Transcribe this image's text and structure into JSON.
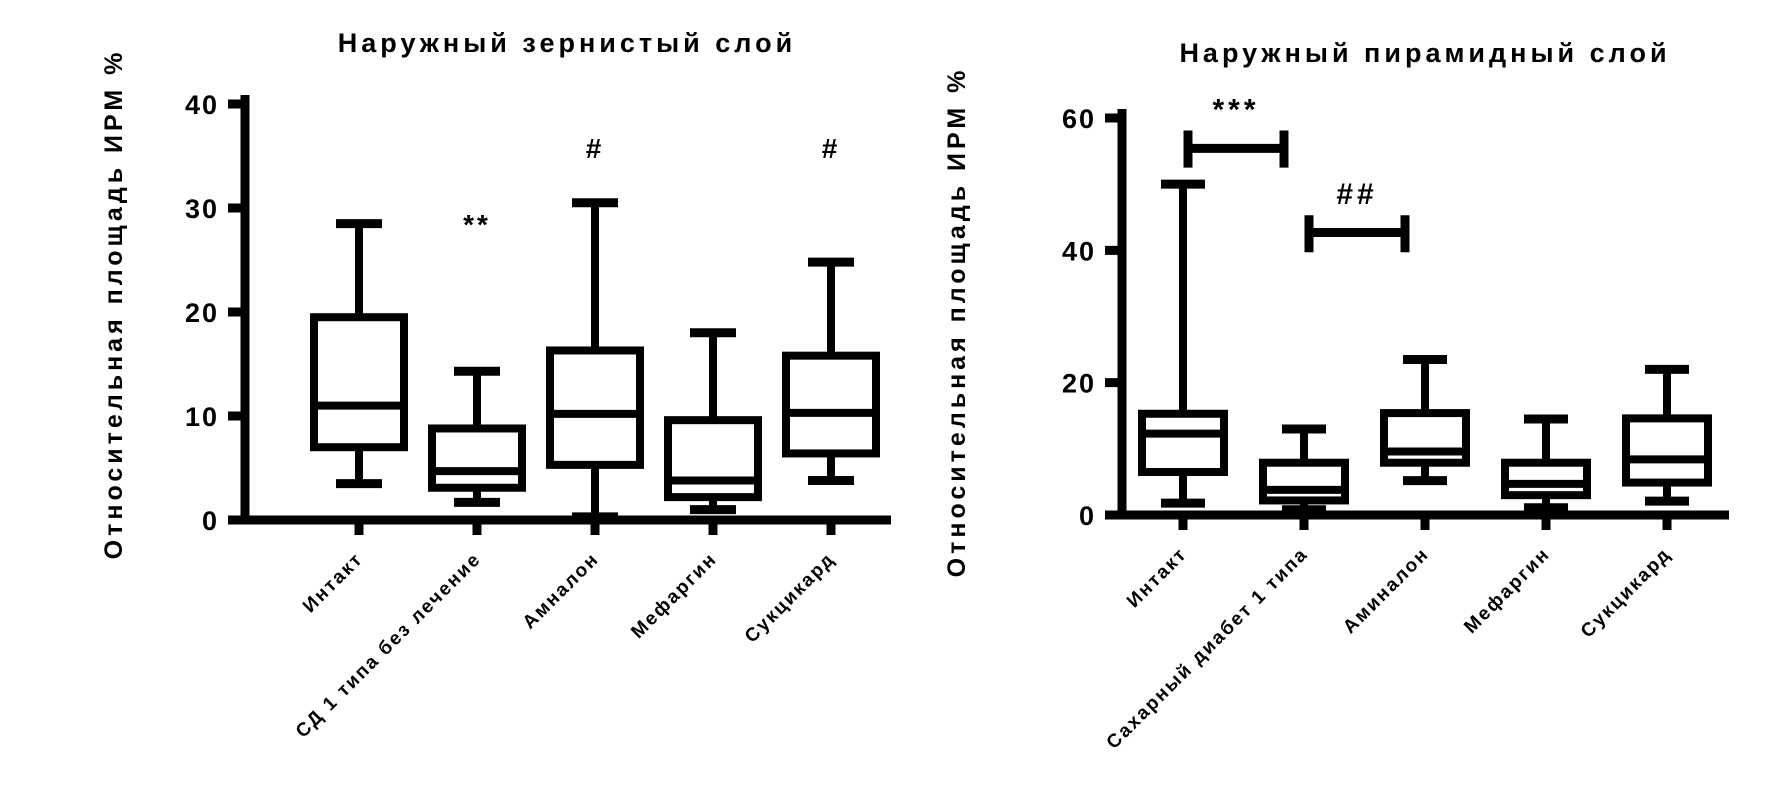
{
  "figure": {
    "background_color": "#ffffff",
    "foreground_color": "#000000"
  },
  "chart_data": [
    {
      "type": "box",
      "title": "Наружный зернистый слой",
      "ylabel": "Относительная площадь ИРМ %",
      "xlabel": "",
      "ylim": [
        0,
        40
      ],
      "yticks": [
        0,
        10,
        20,
        30,
        40
      ],
      "grid": false,
      "legend": "none",
      "categories": [
        "Интакт",
        "СД 1 типа без лечение",
        "Амналон",
        "Мефаргин",
        "Сукцикард"
      ],
      "boxes": [
        {
          "whisker_low": 3.5,
          "q1": 7.0,
          "median": 11.0,
          "q3": 19.5,
          "whisker_high": 28.5
        },
        {
          "whisker_low": 1.7,
          "q1": 3.1,
          "median": 4.7,
          "q3": 8.8,
          "whisker_high": 14.3
        },
        {
          "whisker_low": 0.3,
          "q1": 5.3,
          "median": 10.2,
          "q3": 16.3,
          "whisker_high": 30.5
        },
        {
          "whisker_low": 1.0,
          "q1": 2.2,
          "median": 3.8,
          "q3": 9.6,
          "whisker_high": 18.0
        },
        {
          "whisker_low": 3.8,
          "q1": 6.4,
          "median": 10.3,
          "q3": 15.8,
          "whisker_high": 24.8
        }
      ],
      "annotations": [
        {
          "category": "СД 1 типа без лечение",
          "label": "**",
          "y": 27.5
        },
        {
          "category": "Амналон",
          "label": "#",
          "y": 34.8
        },
        {
          "category": "Сукцикард",
          "label": "#",
          "y": 34.8
        }
      ],
      "brackets": []
    },
    {
      "type": "box",
      "title": "Наружный пирамидный слой",
      "ylabel": "Относительная площадь ИРМ %",
      "xlabel": "",
      "ylim": [
        0,
        60
      ],
      "yticks": [
        0,
        20,
        40,
        60
      ],
      "grid": false,
      "legend": "none",
      "categories": [
        "Интакт",
        "Сахарный диабет 1 типа",
        "Аминалон",
        "Мефаргин",
        "Сукцикард"
      ],
      "boxes": [
        {
          "whisker_low": 1.8,
          "q1": 6.5,
          "median": 12.3,
          "q3": 15.3,
          "whisker_high": 50.0
        },
        {
          "whisker_low": 0.8,
          "q1": 2.2,
          "median": 3.8,
          "q3": 7.9,
          "whisker_high": 13.0
        },
        {
          "whisker_low": 5.2,
          "q1": 7.9,
          "median": 9.6,
          "q3": 15.4,
          "whisker_high": 23.5
        },
        {
          "whisker_low": 1.1,
          "q1": 3.0,
          "median": 4.7,
          "q3": 7.9,
          "whisker_high": 14.5
        },
        {
          "whisker_low": 2.1,
          "q1": 4.9,
          "median": 8.4,
          "q3": 14.6,
          "whisker_high": 22.0
        }
      ],
      "annotations": [],
      "brackets": [
        {
          "from": "Интакт",
          "to": "Сахарный диабет 1 типа",
          "bar_y": 55.4,
          "cap_top": 58.1,
          "cap_bottom": 52.5,
          "label": "***",
          "label_y": 59.8
        },
        {
          "from": "Сахарный диабет 1 типа",
          "to": "Аминалон",
          "bar_y": 42.7,
          "cap_top": 45.3,
          "cap_bottom": 39.7,
          "label": "##",
          "label_y": 47.0
        }
      ]
    }
  ]
}
